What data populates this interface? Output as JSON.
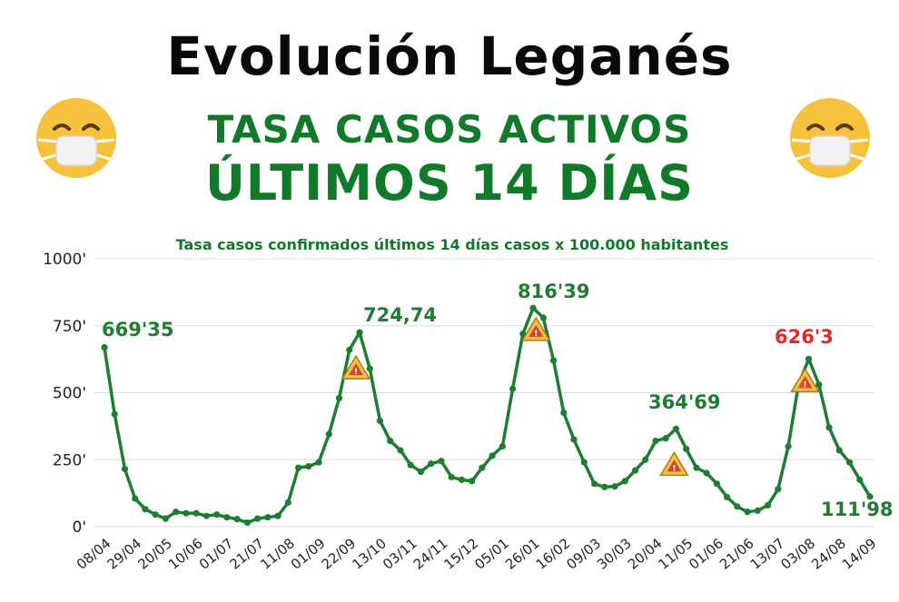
{
  "header": {
    "title": "Evolución Leganés",
    "subtitle_1": "TASA CASOS ACTIVOS",
    "subtitle_2": "ÚLTIMOS 14 DÍAS"
  },
  "icons": {
    "left": "masked-face-icon",
    "right": "masked-face-icon",
    "warning": "warning-triangle-icon"
  },
  "colors": {
    "line": "#1e7d32",
    "title_green": "#117a2a",
    "alert_red": "#e02a2a",
    "warning_fill": "#f2c14a"
  },
  "chart_data": {
    "type": "line",
    "title": "Tasa casos confirmados últimos 14 días  casos x 100.000 habitantes",
    "ylim": [
      0,
      1000
    ],
    "yticks": [
      "0'",
      "250'",
      "500'",
      "750'",
      "1000'"
    ],
    "ytick_values": [
      0,
      250,
      500,
      750,
      1000
    ],
    "xtick_labels": [
      "08/04",
      "29/04",
      "20/05",
      "10/06",
      "01/07",
      "21/07",
      "11/08",
      "01/09",
      "22/09",
      "13/10",
      "03/11",
      "24/11",
      "15/12",
      "05/01",
      "26/01",
      "16/02",
      "09/03",
      "30/03",
      "20/04",
      "11/05",
      "01/06",
      "21/06",
      "13/07",
      "03/08",
      "24/08",
      "14/09"
    ],
    "grid": true,
    "series": [
      {
        "values": [
          669,
          420,
          215,
          105,
          65,
          45,
          30,
          55,
          50,
          50,
          40,
          45,
          35,
          28,
          15,
          30,
          35,
          40,
          90,
          220,
          225,
          240,
          345,
          480,
          660,
          725,
          590,
          395,
          320,
          285,
          230,
          205,
          235,
          245,
          185,
          175,
          170,
          220,
          265,
          300,
          515,
          720,
          816,
          780,
          620,
          425,
          325,
          240,
          160,
          148,
          150,
          170,
          210,
          250,
          320,
          330,
          365,
          290,
          220,
          200,
          160,
          110,
          75,
          55,
          60,
          80,
          140,
          300,
          530,
          626,
          530,
          370,
          285,
          240,
          175,
          112
        ],
        "markers": true
      }
    ],
    "annotations": [
      {
        "text": "669'35",
        "color": "green"
      },
      {
        "text": "724,74",
        "color": "green"
      },
      {
        "text": "816'39",
        "color": "green"
      },
      {
        "text": "364'69",
        "color": "green"
      },
      {
        "text": "626'3",
        "color": "red"
      },
      {
        "text": "111'98",
        "color": "green"
      }
    ]
  }
}
